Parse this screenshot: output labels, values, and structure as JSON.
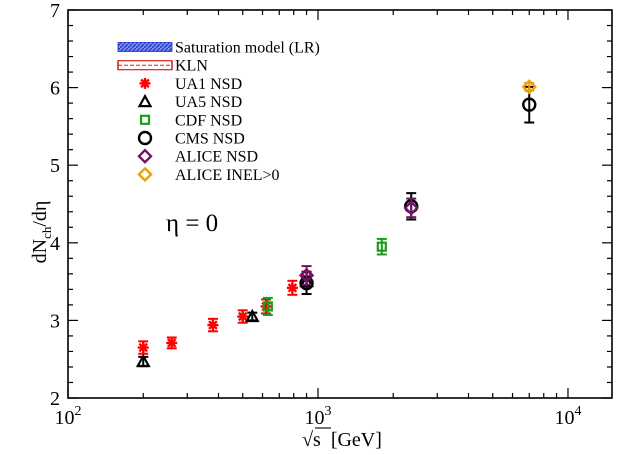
{
  "chart_data": {
    "type": "scatter",
    "title": "",
    "xlabel": {
      "base": "√s",
      "unit": "[GeV]"
    },
    "ylabel": {
      "main": "dN",
      "sub": "ch",
      "tail": "/dη"
    },
    "x_scale": "log",
    "xlim": [
      100,
      15000
    ],
    "ylim": [
      2,
      7
    ],
    "x_ticks": [
      {
        "value": 100,
        "base": "10",
        "exp": "2"
      },
      {
        "value": 1000,
        "base": "10",
        "exp": "3"
      },
      {
        "value": 10000,
        "base": "10",
        "exp": "4"
      }
    ],
    "y_ticks": [
      {
        "value": 2,
        "label": "2"
      },
      {
        "value": 3,
        "label": "3"
      },
      {
        "value": 4,
        "label": "4"
      },
      {
        "value": 5,
        "label": "5"
      },
      {
        "value": 6,
        "label": "6"
      },
      {
        "value": 7,
        "label": "7"
      }
    ],
    "annotation": "η = 0",
    "grid": false,
    "legend_position": "top-left",
    "series": [
      {
        "name": "Saturation model (LR)",
        "marker": "band",
        "color": "#1a2fd0",
        "points": []
      },
      {
        "name": "KLN",
        "marker": "band",
        "color": "#e02020",
        "points": []
      },
      {
        "name": "UA1 NSD",
        "marker": "asterisk",
        "color": "#ff0000",
        "points": [
          {
            "x": 200,
            "y": 2.65,
            "err": 0.08
          },
          {
            "x": 260,
            "y": 2.71,
            "err": 0.07
          },
          {
            "x": 380,
            "y": 2.94,
            "err": 0.08
          },
          {
            "x": 500,
            "y": 3.05,
            "err": 0.08
          },
          {
            "x": 620,
            "y": 3.18,
            "err": 0.09
          },
          {
            "x": 790,
            "y": 3.42,
            "err": 0.09
          },
          {
            "x": 900,
            "y": 3.54,
            "err": 0.09
          }
        ]
      },
      {
        "name": "UA5 NSD",
        "marker": "triangle",
        "color": "#000000",
        "points": [
          {
            "x": 200,
            "y": 2.47,
            "err": 0.06
          },
          {
            "x": 546,
            "y": 3.05,
            "err": 0.05
          },
          {
            "x": 900,
            "y": 3.5,
            "err": 0.06
          }
        ]
      },
      {
        "name": "CDF NSD",
        "marker": "square",
        "color": "#1a9e1a",
        "points": [
          {
            "x": 630,
            "y": 3.18,
            "err": 0.11
          },
          {
            "x": 1800,
            "y": 3.95,
            "err": 0.1
          }
        ]
      },
      {
        "name": "CMS NSD",
        "marker": "circle",
        "color": "#000000",
        "points": [
          {
            "x": 900,
            "y": 3.48,
            "err": 0.14
          },
          {
            "x": 2360,
            "y": 4.47,
            "err": 0.17
          },
          {
            "x": 7000,
            "y": 5.78,
            "err": 0.23
          }
        ]
      },
      {
        "name": "ALICE NSD",
        "marker": "diamond",
        "color": "#6e1467",
        "points": [
          {
            "x": 900,
            "y": 3.58,
            "err": 0.12
          },
          {
            "x": 2360,
            "y": 4.45,
            "err": 0.12
          }
        ]
      },
      {
        "name": "ALICE INEL>0",
        "marker": "diamond",
        "color": "#f0a000",
        "points": [
          {
            "x": 7000,
            "y": 6.01,
            "err": 0.05
          }
        ]
      }
    ]
  }
}
